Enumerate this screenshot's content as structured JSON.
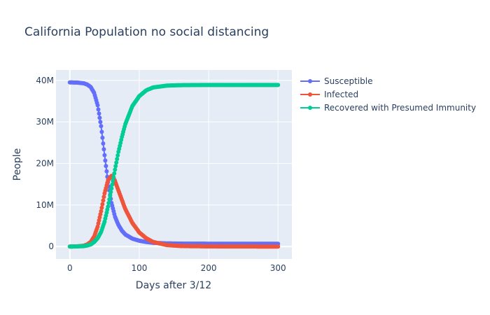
{
  "chart_data": {
    "type": "scatter",
    "mode": "lines+markers",
    "title": "California Population no social distancing",
    "xlabel": "Days after 3/12",
    "ylabel": "People",
    "xlim": [
      -20,
      320
    ],
    "ylim": [
      -3000000,
      42500000
    ],
    "x_ticks": [
      0,
      100,
      200,
      300
    ],
    "x_tick_labels": [
      "0",
      "100",
      "200",
      "300"
    ],
    "y_ticks": [
      0,
      10000000,
      20000000,
      30000000,
      40000000
    ],
    "y_tick_labels": [
      "0",
      "10M",
      "20M",
      "30M",
      "40M"
    ],
    "grid": true,
    "legend_position": "right",
    "background": "#e5ecf6",
    "series": [
      {
        "name": "Susceptible",
        "color": "#636efa",
        "x": [
          0,
          10,
          20,
          25,
          30,
          35,
          40,
          45,
          50,
          55,
          60,
          65,
          70,
          75,
          80,
          90,
          100,
          110,
          120,
          140,
          160,
          200,
          250,
          300
        ],
        "y": [
          39500000,
          39480000,
          39300000,
          39000000,
          38400000,
          37000000,
          34000000,
          29000000,
          22000000,
          15500000,
          10500000,
          7200000,
          5200000,
          3800000,
          2900000,
          1900000,
          1400000,
          1100000,
          900000,
          750000,
          700000,
          680000,
          670000,
          660000
        ]
      },
      {
        "name": "Infected",
        "color": "#ef553b",
        "x": [
          0,
          10,
          20,
          25,
          30,
          35,
          40,
          45,
          50,
          55,
          60,
          62,
          65,
          70,
          75,
          80,
          90,
          100,
          110,
          120,
          140,
          160,
          200,
          250,
          300
        ],
        "y": [
          10000,
          40000,
          200000,
          500000,
          1100000,
          2400000,
          4800000,
          8500000,
          12800000,
          16000000,
          17000000,
          16800000,
          15800000,
          13500000,
          11200000,
          9000000,
          5700000,
          3400000,
          2000000,
          1100000,
          350000,
          120000,
          30000,
          10000,
          5000
        ]
      },
      {
        "name": "Recovered with Presumed Immunity",
        "color": "#00cc96",
        "x": [
          0,
          10,
          20,
          25,
          30,
          35,
          40,
          45,
          50,
          55,
          60,
          65,
          70,
          75,
          80,
          90,
          100,
          110,
          120,
          140,
          160,
          200,
          250,
          300
        ],
        "y": [
          0,
          20000,
          100000,
          250000,
          500000,
          1100000,
          2000000,
          3500000,
          6000000,
          9600000,
          14000000,
          18500000,
          22800000,
          26400000,
          29500000,
          33800000,
          36200000,
          37600000,
          38300000,
          38750000,
          38850000,
          38900000,
          38900000,
          38900000
        ]
      }
    ]
  }
}
